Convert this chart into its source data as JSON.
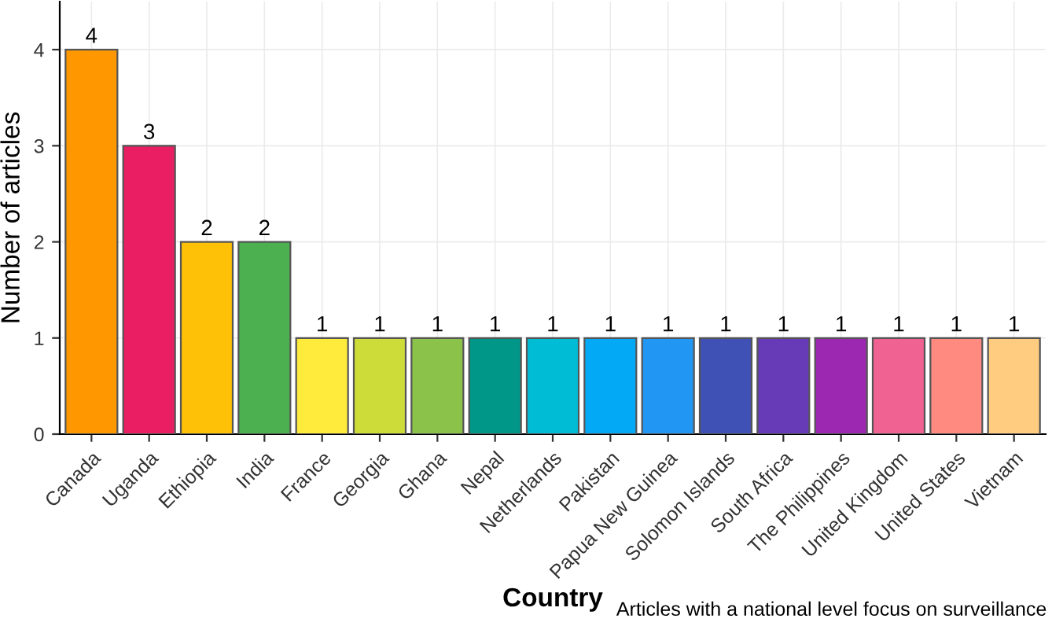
{
  "chart_data": {
    "type": "bar",
    "xlabel": "Country",
    "ylabel": "Number of articles",
    "categories": [
      "Canada",
      "Uganda",
      "Ethiopia",
      "India",
      "France",
      "Georgia",
      "Ghana",
      "Nepal",
      "Netherlands",
      "Pakistan",
      "Papua New Guinea",
      "Solomon Islands",
      "South Africa",
      "The Philippines",
      "United Kingdom",
      "United States",
      "Vietnam"
    ],
    "values": [
      4,
      3,
      2,
      2,
      1,
      1,
      1,
      1,
      1,
      1,
      1,
      1,
      1,
      1,
      1,
      1,
      1
    ],
    "colors": [
      "#ff9800",
      "#e91e63",
      "#ffc107",
      "#4caf50",
      "#ffeb3b",
      "#cddc39",
      "#8bc34a",
      "#009688",
      "#00bcd4",
      "#03a9f4",
      "#2196f3",
      "#3f51b5",
      "#673ab7",
      "#9c27b0",
      "#f06292",
      "#ff8a80",
      "#ffcc80"
    ],
    "ylim": [
      0,
      4.5
    ],
    "yticks": [
      0,
      1,
      2,
      3,
      4
    ],
    "grid": true,
    "data_labels": true,
    "annotations": [
      "Articles with a national level focus on surveillance"
    ]
  }
}
